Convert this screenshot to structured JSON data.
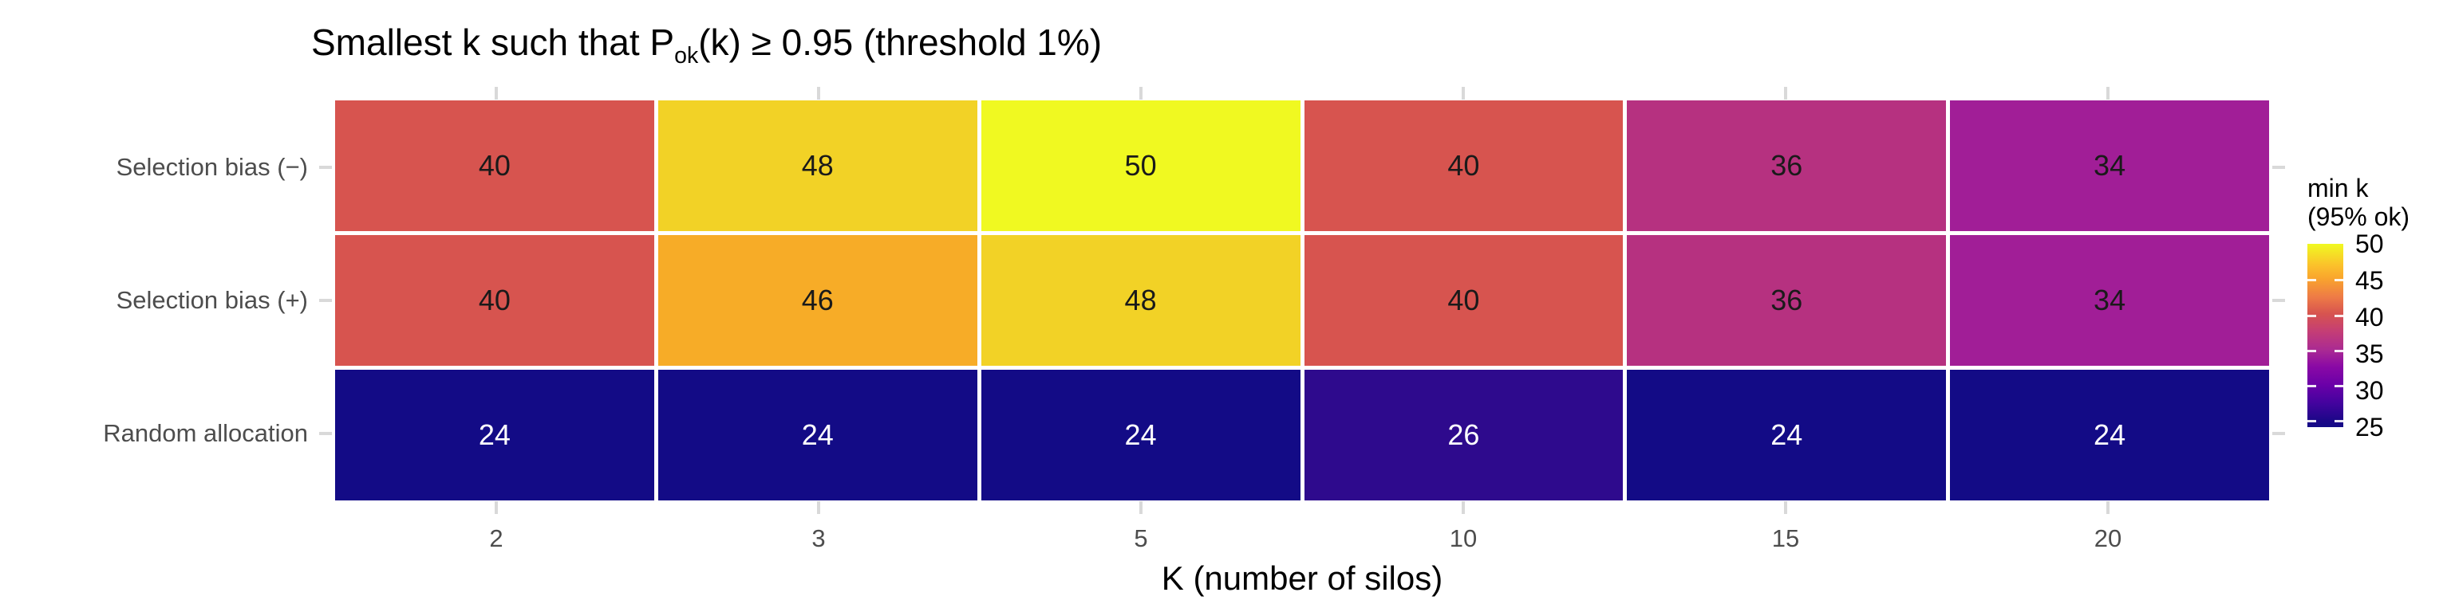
{
  "title": {
    "prefix": "Smallest k such that P",
    "sub": "ok",
    "suffix": "(k) ≥ 0.95 (threshold 1%)"
  },
  "chart_data": {
    "type": "heatmap",
    "title": "Smallest k such that P_ok(k) ≥ 0.95 (threshold 1%)",
    "xlabel": "K (number of silos)",
    "ylabel": "",
    "x_categories": [
      "2",
      "3",
      "5",
      "10",
      "15",
      "20"
    ],
    "y_categories": [
      "Selection bias (−)",
      "Selection bias (+)",
      "Random allocation"
    ],
    "series": [
      {
        "name": "Selection bias (−)",
        "values": [
          40,
          48,
          50,
          40,
          36,
          34
        ]
      },
      {
        "name": "Selection bias (+)",
        "values": [
          40,
          46,
          48,
          40,
          36,
          34
        ]
      },
      {
        "name": "Random allocation",
        "values": [
          24,
          24,
          24,
          26,
          24,
          24
        ]
      }
    ],
    "colormap": "plasma",
    "value_range": [
      24,
      50
    ],
    "grid": false,
    "legend_position": "right"
  },
  "cells": [
    [
      {
        "v": 40,
        "bg": "#d7544f",
        "fg": "#1a1a1a"
      },
      {
        "v": 48,
        "bg": "#f2d226",
        "fg": "#1a1a1a"
      },
      {
        "v": 50,
        "bg": "#f0f921",
        "fg": "#1a1a1a"
      },
      {
        "v": 40,
        "bg": "#d7544f",
        "fg": "#1a1a1a"
      },
      {
        "v": 36,
        "bg": "#b63180",
        "fg": "#1a1a1a"
      },
      {
        "v": 34,
        "bg": "#a11e97",
        "fg": "#1a1a1a"
      }
    ],
    [
      {
        "v": 40,
        "bg": "#d7544f",
        "fg": "#1a1a1a"
      },
      {
        "v": 46,
        "bg": "#f7ac27",
        "fg": "#1a1a1a"
      },
      {
        "v": 48,
        "bg": "#f2d226",
        "fg": "#1a1a1a"
      },
      {
        "v": 40,
        "bg": "#d7544f",
        "fg": "#1a1a1a"
      },
      {
        "v": 36,
        "bg": "#b63180",
        "fg": "#1a1a1a"
      },
      {
        "v": 34,
        "bg": "#a11e97",
        "fg": "#1a1a1a"
      }
    ],
    [
      {
        "v": 24,
        "bg": "#130b86",
        "fg": "#ffffff"
      },
      {
        "v": 24,
        "bg": "#130b86",
        "fg": "#ffffff"
      },
      {
        "v": 24,
        "bg": "#130b86",
        "fg": "#ffffff"
      },
      {
        "v": 26,
        "bg": "#2e0a8d",
        "fg": "#ffffff"
      },
      {
        "v": 24,
        "bg": "#130b86",
        "fg": "#ffffff"
      },
      {
        "v": 24,
        "bg": "#130b86",
        "fg": "#ffffff"
      }
    ]
  ],
  "legend": {
    "title_line1": "min k",
    "title_line2": "(95% ok)",
    "labels": [
      "50",
      "45",
      "40",
      "35",
      "30",
      "25"
    ],
    "gradient": "linear-gradient(to bottom, #f0f921 0%, #fbc02b 12%, #f9a42d 19%, #ee7b46 29%, #d7544f 38%, #c43d76 48%, #aa2a93 58%, #8a09a5 67%, #6a00a8 77%, #43039e 87%, #1e0789 96%, #130b86 100%)"
  }
}
